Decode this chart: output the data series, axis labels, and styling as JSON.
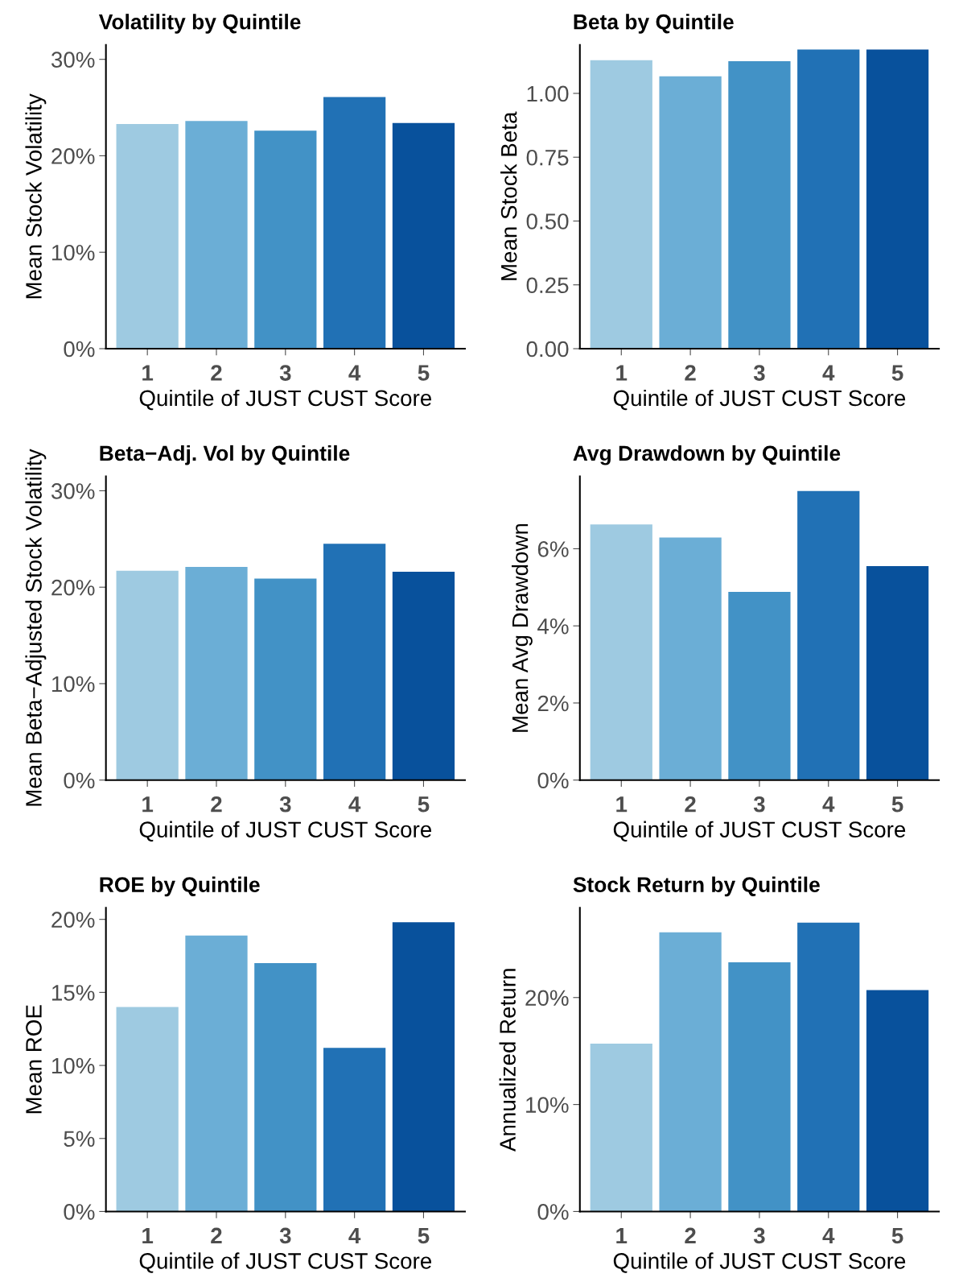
{
  "chart_data": [
    {
      "type": "bar",
      "title": "Volatility by Quintile",
      "xlabel": "Quintile of JUST CUST Score",
      "ylabel": "Mean Stock Volatility",
      "categories": [
        "1",
        "2",
        "3",
        "4",
        "5"
      ],
      "values": [
        23.3,
        23.6,
        22.6,
        26.1,
        23.4
      ],
      "colors": [
        "#9ecae1",
        "#6baed6",
        "#4292c6",
        "#2171b5",
        "#08519c"
      ],
      "ylim": [
        0,
        31.5
      ],
      "yticks": [
        {
          "value": 0,
          "label": "0%"
        },
        {
          "value": 10,
          "label": "10%"
        },
        {
          "value": 20,
          "label": "20%"
        },
        {
          "value": 30,
          "label": "30%"
        }
      ],
      "grid": false,
      "legend": false
    },
    {
      "type": "bar",
      "title": "Beta by Quintile",
      "xlabel": "Quintile of JUST CUST Score",
      "ylabel": "Mean Stock Beta",
      "categories": [
        "1",
        "2",
        "3",
        "4",
        "5"
      ],
      "values": [
        1.13,
        1.067,
        1.126,
        1.172,
        1.172
      ],
      "colors": [
        "#9ecae1",
        "#6baed6",
        "#4292c6",
        "#2171b5",
        "#08519c"
      ],
      "ylim": [
        0,
        1.19
      ],
      "yticks": [
        {
          "value": 0,
          "label": "0.00"
        },
        {
          "value": 0.25,
          "label": "0.25"
        },
        {
          "value": 0.5,
          "label": "0.50"
        },
        {
          "value": 0.75,
          "label": "0.75"
        },
        {
          "value": 1,
          "label": "1.00"
        }
      ],
      "grid": false,
      "legend": false
    },
    {
      "type": "bar",
      "title": "Beta−Adj. Vol by Quintile",
      "xlabel": "Quintile of JUST CUST Score",
      "ylabel": "Mean Beta−Adjusted Stock Volatility",
      "categories": [
        "1",
        "2",
        "3",
        "4",
        "5"
      ],
      "values": [
        21.7,
        22.1,
        20.9,
        24.5,
        21.6
      ],
      "colors": [
        "#9ecae1",
        "#6baed6",
        "#4292c6",
        "#2171b5",
        "#08519c"
      ],
      "ylim": [
        0,
        31.5
      ],
      "yticks": [
        {
          "value": 0,
          "label": "0%"
        },
        {
          "value": 10,
          "label": "10%"
        },
        {
          "value": 20,
          "label": "20%"
        },
        {
          "value": 30,
          "label": "30%"
        }
      ],
      "grid": false,
      "legend": false
    },
    {
      "type": "bar",
      "title": "Avg Drawdown by Quintile",
      "xlabel": "Quintile of JUST CUST Score",
      "ylabel": "Mean Avg Drawdown",
      "categories": [
        "1",
        "2",
        "3",
        "4",
        "5"
      ],
      "values": [
        6.63,
        6.29,
        4.88,
        7.5,
        5.55
      ],
      "colors": [
        "#9ecae1",
        "#6baed6",
        "#4292c6",
        "#2171b5",
        "#08519c"
      ],
      "ylim": [
        0,
        7.88
      ],
      "yticks": [
        {
          "value": 0,
          "label": "0%"
        },
        {
          "value": 2,
          "label": "2%"
        },
        {
          "value": 4,
          "label": "4%"
        },
        {
          "value": 6,
          "label": "6%"
        }
      ],
      "grid": false,
      "legend": false
    },
    {
      "type": "bar",
      "title": "ROE by Quintile",
      "xlabel": "Quintile of JUST CUST Score",
      "ylabel": "Mean ROE",
      "categories": [
        "1",
        "2",
        "3",
        "4",
        "5"
      ],
      "values": [
        14.0,
        18.9,
        17.0,
        11.2,
        19.8
      ],
      "colors": [
        "#9ecae1",
        "#6baed6",
        "#4292c6",
        "#2171b5",
        "#08519c"
      ],
      "ylim": [
        0,
        20.8
      ],
      "yticks": [
        {
          "value": 0,
          "label": "0%"
        },
        {
          "value": 5,
          "label": "5%"
        },
        {
          "value": 10,
          "label": "10%"
        },
        {
          "value": 15,
          "label": "15%"
        },
        {
          "value": 20,
          "label": "20%"
        }
      ],
      "grid": false,
      "legend": false
    },
    {
      "type": "bar",
      "title": "Stock Return by Quintile",
      "xlabel": "Quintile of JUST CUST Score",
      "ylabel": "Annualized Return",
      "categories": [
        "1",
        "2",
        "3",
        "4",
        "5"
      ],
      "values": [
        15.7,
        26.1,
        23.3,
        27.0,
        20.7
      ],
      "colors": [
        "#9ecae1",
        "#6baed6",
        "#4292c6",
        "#2171b5",
        "#08519c"
      ],
      "ylim": [
        0,
        28.4
      ],
      "yticks": [
        {
          "value": 0,
          "label": "0%"
        },
        {
          "value": 10,
          "label": "10%"
        },
        {
          "value": 20,
          "label": "20%"
        }
      ],
      "grid": false,
      "legend": false
    }
  ]
}
